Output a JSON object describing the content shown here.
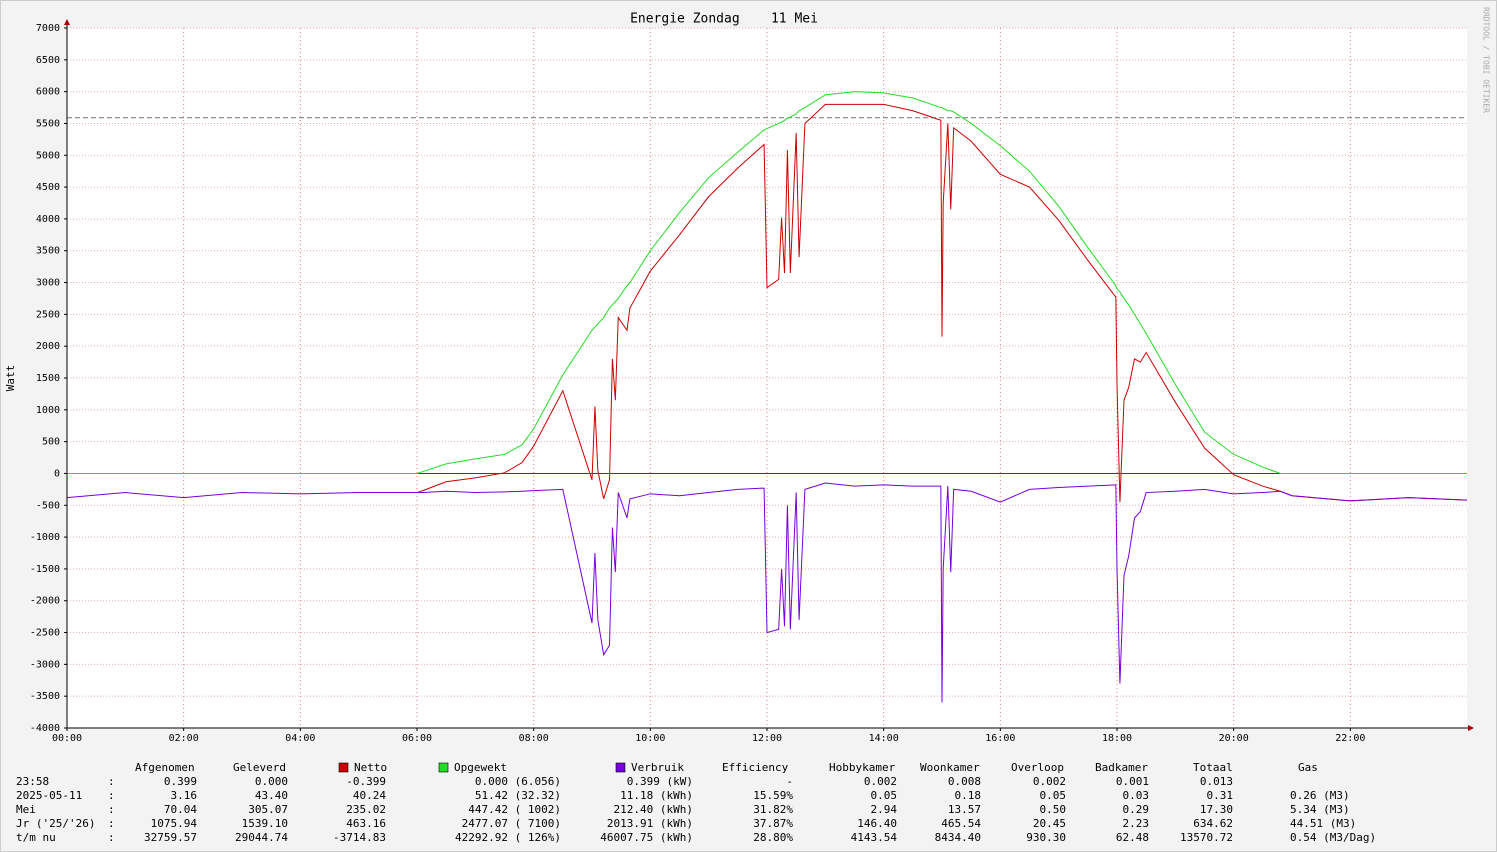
{
  "chart_data": {
    "type": "line",
    "title": "Energie Zondag    11 Mei",
    "y_label": "Watt",
    "watermark": "RRDTOOL / TOBI OETIKER",
    "xlim": [
      0,
      24
    ],
    "xticks": [
      {
        "value": 0,
        "label": "00:00"
      },
      {
        "value": 2,
        "label": "02:00"
      },
      {
        "value": 4,
        "label": "04:00"
      },
      {
        "value": 6,
        "label": "06:00"
      },
      {
        "value": 8,
        "label": "08:00"
      },
      {
        "value": 10,
        "label": "10:00"
      },
      {
        "value": 12,
        "label": "12:00"
      },
      {
        "value": 14,
        "label": "14:00"
      },
      {
        "value": 16,
        "label": "16:00"
      },
      {
        "value": 18,
        "label": "18:00"
      },
      {
        "value": 20,
        "label": "20:00"
      },
      {
        "value": 22,
        "label": "22:00"
      }
    ],
    "ylim": [
      -4000,
      7000
    ],
    "yticks": [
      -4000,
      -3500,
      -3000,
      -2500,
      -2000,
      -1500,
      -1000,
      -500,
      0,
      500,
      1000,
      1500,
      2000,
      2500,
      3000,
      3500,
      4000,
      4500,
      5000,
      5500,
      6000,
      6500,
      7000
    ],
    "grid": true,
    "reference_line": 5590,
    "x": [
      0,
      1,
      2,
      3,
      4,
      5,
      6,
      6.1,
      6.5,
      7,
      7.5,
      7.8,
      8,
      8.5,
      9,
      9.05,
      9.1,
      9.2,
      9.3,
      9.35,
      9.4,
      9.45,
      9.6,
      9.65,
      10,
      10.5,
      11,
      11.5,
      11.95,
      12,
      12.2,
      12.25,
      12.3,
      12.35,
      12.4,
      12.5,
      12.55,
      12.65,
      13,
      13.5,
      14,
      14.5,
      14.98,
      15,
      15.02,
      15.1,
      15.15,
      15.2,
      15.5,
      16,
      16.5,
      17,
      17.5,
      17.98,
      18,
      18.05,
      18.12,
      18.2,
      18.3,
      18.4,
      18.5,
      19,
      19.5,
      20,
      20.5,
      20.8,
      21,
      22,
      23,
      24
    ],
    "series": [
      {
        "name": "Opgewekt",
        "color": "#22dd22",
        "values": [
          0,
          0,
          0,
          0,
          0,
          0,
          0,
          30,
          150,
          230,
          300,
          450,
          700,
          1550,
          2250,
          2300,
          2350,
          2450,
          2600,
          2650,
          2700,
          2750,
          2950,
          3000,
          3500,
          4100,
          4650,
          5050,
          5400,
          5420,
          5500,
          5520,
          5550,
          5580,
          5600,
          5650,
          5700,
          5750,
          5950,
          6000,
          5980,
          5900,
          5750,
          5750,
          5740,
          5700,
          5700,
          5680,
          5500,
          5150,
          4750,
          4200,
          3550,
          2950,
          2900,
          2850,
          2750,
          2650,
          2500,
          2350,
          2200,
          1400,
          650,
          300,
          100,
          0,
          0,
          0,
          0,
          0
        ]
      },
      {
        "name": "Netto",
        "color": "#cc0000",
        "values": [
          null,
          null,
          null,
          null,
          null,
          null,
          -300,
          -270,
          -130,
          -70,
          10,
          170,
          430,
          1300,
          -100,
          1050,
          50,
          -400,
          -100,
          1800,
          1150,
          2450,
          2250,
          2600,
          3180,
          3750,
          4350,
          4800,
          5170,
          2920,
          3050,
          4020,
          3150,
          5080,
          3150,
          5350,
          3400,
          5500,
          5800,
          5800,
          5800,
          5700,
          5550,
          2150,
          4240,
          5500,
          4150,
          5430,
          5220,
          4700,
          4500,
          3980,
          3350,
          2770,
          1400,
          -450,
          1150,
          1350,
          1800,
          1750,
          1900,
          1120,
          400,
          -20,
          -200,
          -280,
          -350,
          -430,
          -380,
          -420
        ]
      },
      {
        "name": "Verbruik",
        "color": "#7700dd",
        "values": [
          -380,
          -300,
          -380,
          -300,
          -320,
          -300,
          -300,
          -300,
          -280,
          -300,
          -290,
          -280,
          -270,
          -250,
          -2350,
          -1250,
          -2300,
          -2850,
          -2700,
          -850,
          -1550,
          -300,
          -700,
          -400,
          -320,
          -350,
          -300,
          -250,
          -230,
          -2500,
          -2450,
          -1500,
          -2400,
          -500,
          -2450,
          -300,
          -2300,
          -250,
          -150,
          -200,
          -180,
          -200,
          -200,
          -3600,
          -1500,
          -200,
          -1550,
          -250,
          -280,
          -450,
          -250,
          -220,
          -200,
          -180,
          -1500,
          -3300,
          -1600,
          -1300,
          -700,
          -600,
          -300,
          -280,
          -250,
          -320,
          -300,
          -280,
          -350,
          -430,
          -380,
          -420
        ]
      }
    ],
    "table": {
      "separator": ":",
      "headers": [
        "Afgenomen",
        "Geleverd",
        "Efficiency",
        "Hobbykamer",
        "Woonkamer",
        "Overloop",
        "Badkamer",
        "Totaal",
        "Gas"
      ],
      "rows": [
        [
          "23:58",
          "0.399",
          "0.000",
          "-0.399",
          "0.000 (6.056)",
          "0.399 (kW)",
          "-",
          "0.002",
          "0.008",
          "0.002",
          "0.001",
          "0.013"
        ],
        [
          "2025-05-11",
          "3.16",
          "43.40",
          "40.24",
          "51.42 (32.32)",
          "11.18 (kWh)",
          "15.59%",
          "0.05",
          "0.18",
          "0.05",
          "0.03",
          "0.31",
          "0.26 (M3)"
        ],
        [
          "Mei",
          "70.04",
          "305.07",
          "235.02",
          "447.42 ( 1002)",
          "212.40 (kWh)",
          "31.82%",
          "2.94",
          "13.57",
          "0.50",
          "0.29",
          "17.30",
          "5.34 (M3)"
        ],
        [
          "Jr ('25/'26)",
          "1075.94",
          "1539.10",
          "463.16",
          "2477.07 ( 7100)",
          "2013.91 (kWh)",
          "37.87%",
          "146.40",
          "465.54",
          "20.45",
          "2.23",
          "634.62",
          "44.51 (M3)"
        ],
        [
          "t/m nu",
          "32759.57",
          "29044.74",
          "-3714.83",
          "42292.92 ( 126%)",
          "46007.75 (kWh)",
          "28.80%",
          "4143.54",
          "8434.40",
          "930.30",
          "62.48",
          "13570.72",
          "0.54 (M3/Dag)"
        ]
      ]
    }
  }
}
